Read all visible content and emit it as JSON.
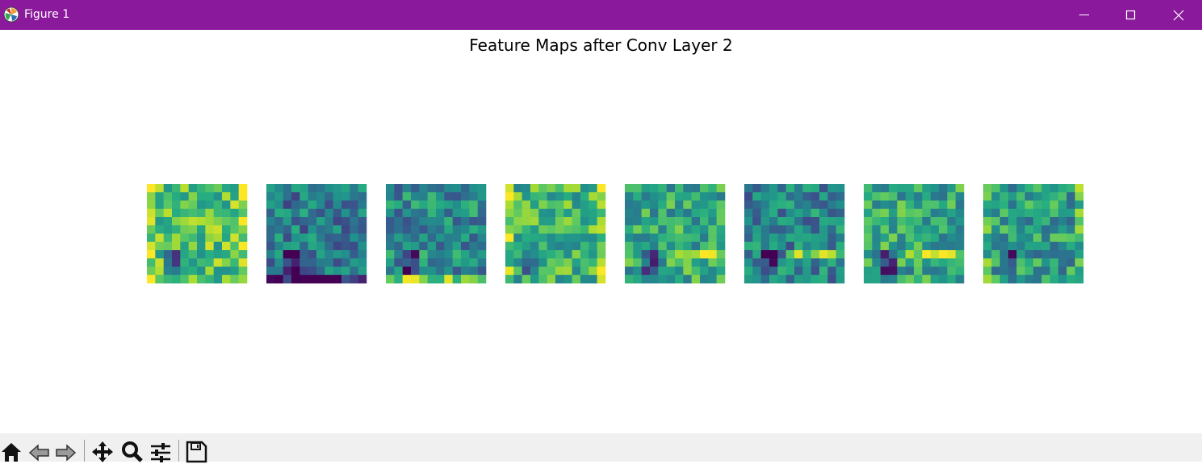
{
  "window": {
    "title": "Figure 1",
    "title_bar_color": "#8a1a9b",
    "app_icon": "matplotlib-icon",
    "controls": [
      "minimize-icon",
      "maximize-icon",
      "close-icon"
    ]
  },
  "figure": {
    "title": "Feature Maps after Conv Layer 2",
    "colormap": "viridis",
    "panel_count": 8,
    "map_size": [
      12,
      12
    ]
  },
  "toolbar": {
    "background": "#f0f0f0",
    "tools": [
      "home-icon",
      "back-icon",
      "forward-icon",
      "pan-icon",
      "zoom-icon",
      "configure-subplots-icon",
      "save-icon"
    ]
  }
}
